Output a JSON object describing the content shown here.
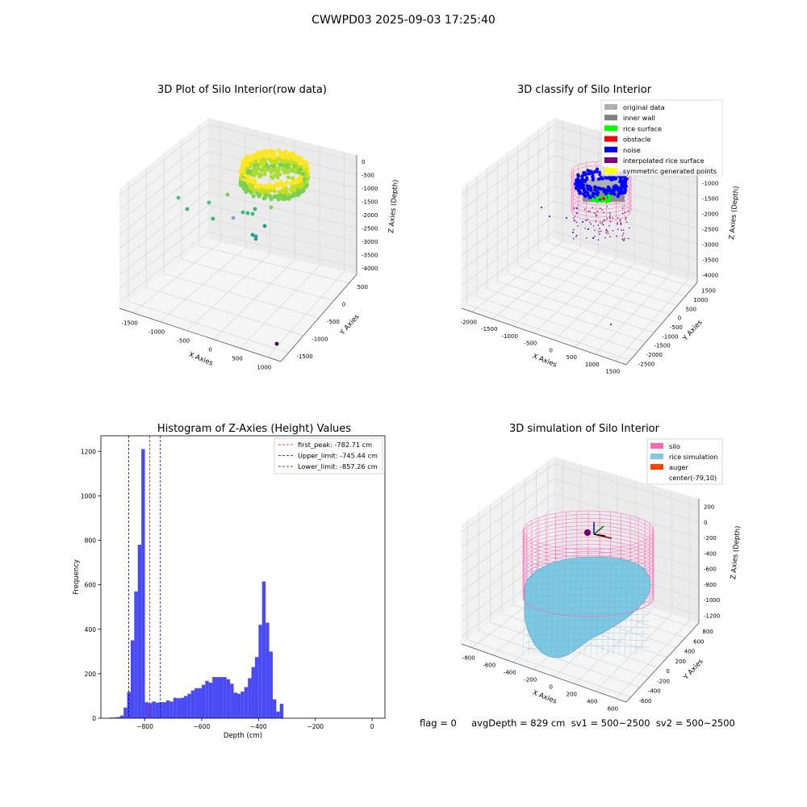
{
  "suptitle": "CWWPD03 2025-09-03 17:25:40",
  "status_line": "flag = 0     avgDepth = 829 cm  sv1 = 500~2500  sv2 = 500~2500",
  "colors": {
    "histogram_bar": "#4a4af5",
    "first_peak_line": "#ff0000",
    "limit_lines": "#0000aa",
    "pane": "#f2f2f2",
    "silo": "#ff69b4",
    "rice": "#7ec8e3",
    "auger": "#ff4500"
  },
  "chart_data": [
    {
      "type": "scatter3d",
      "title": "3D Plot of Silo Interior(row data)",
      "xlabel": "X Axies",
      "ylabel": "Y Axies",
      "zlabel": "Z Axies (Depth)",
      "x_ticks": [
        "-1500",
        "-1000",
        "-500",
        "0",
        "500",
        "1000"
      ],
      "y_ticks": [
        "-1500",
        "-1000",
        "-500",
        "0",
        "500"
      ],
      "z_ticks": [
        "0",
        "-500",
        "-1000",
        "-1500",
        "-2000",
        "-2500",
        "-3000",
        "-3500",
        "-4000"
      ],
      "colormap": "viridis",
      "grid": true
    },
    {
      "type": "scatter3d",
      "title": "3D classify of Silo Interior",
      "xlabel": "X Axies",
      "ylabel": "Y Axies",
      "zlabel": "Z Axies (Depth)",
      "x_ticks": [
        "-2000",
        "-1500",
        "-1000",
        "-500",
        "0",
        "500",
        "1000",
        "1500"
      ],
      "y_ticks": [
        "-2500",
        "-2000",
        "-1500",
        "-1000",
        "-500",
        "0",
        "500",
        "1000",
        "1500"
      ],
      "z_ticks": [
        "-500",
        "-1000",
        "-1500",
        "-2000",
        "-2500",
        "-3000",
        "-3500",
        "-4000"
      ],
      "legend_position": "top-right",
      "legend": [
        {
          "label": "original data",
          "color": "#b0b0b0"
        },
        {
          "label": "inner wall",
          "color": "#808080"
        },
        {
          "label": "rice surface",
          "color": "#00ff00"
        },
        {
          "label": "obstacle",
          "color": "#ff0000"
        },
        {
          "label": "noise",
          "color": "#0000ff"
        },
        {
          "label": "interpolated rice surface",
          "color": "#800080"
        },
        {
          "label": "symmetric generated points",
          "color": "#ffff00"
        }
      ],
      "grid": true
    },
    {
      "type": "bar",
      "title": "Histogram of Z-Axies (Height) Values",
      "xlabel": "Depth (cm)",
      "ylabel": "Frequency",
      "xlim": [
        -955,
        45
      ],
      "ylim": [
        0,
        1270
      ],
      "x_ticks": [
        -800,
        -600,
        -400,
        -200,
        0
      ],
      "y_ticks": [
        0,
        200,
        400,
        600,
        800,
        1000,
        1200
      ],
      "bin_edges_start": -925,
      "bin_width": 12.5,
      "values": [
        3,
        3,
        5,
        12,
        48,
        118,
        350,
        570,
        780,
        1210,
        72,
        68,
        75,
        70,
        72,
        72,
        80,
        75,
        92,
        90,
        92,
        100,
        110,
        125,
        135,
        135,
        150,
        168,
        160,
        185,
        185,
        185,
        185,
        175,
        155,
        115,
        110,
        120,
        140,
        180,
        230,
        275,
        420,
        615,
        430,
        300,
        85,
        30,
        65
      ],
      "reference_lines": [
        {
          "label": "first_peak: -782.71 cm",
          "x": -782.71,
          "color": "#ff0000",
          "style": "dashed"
        },
        {
          "label": "Upper_limit: -745.44 cm",
          "x": -745.44,
          "color": "#0000aa",
          "style": "dashed"
        },
        {
          "label": "Lower_limit: -857.26 cm",
          "x": -857.26,
          "color": "#0000aa",
          "style": "dashed"
        }
      ],
      "legend_position": "top-right",
      "grid": false
    },
    {
      "type": "surface3d",
      "title": "3D simulation of Silo Interior",
      "xlabel": "X Axies",
      "ylabel": "Y Axies",
      "zlabel": "Z Axies (Depth)",
      "x_ticks": [
        "-800",
        "-600",
        "-400",
        "-200",
        "0",
        "200",
        "400",
        "600"
      ],
      "y_ticks": [
        "-600",
        "-400",
        "-200",
        "0",
        "200",
        "400",
        "600",
        "800"
      ],
      "z_ticks": [
        "200",
        "0",
        "-200",
        "-400",
        "-600",
        "-800",
        "-1000",
        "-1200"
      ],
      "legend_position": "top-right",
      "legend": [
        {
          "label": "silo",
          "color": "#ff69b4"
        },
        {
          "label": "rice simulation",
          "color": "#7ec8e3"
        },
        {
          "label": "auger",
          "color": "#ff4500"
        },
        {
          "label": "center(-79,10)",
          "color": ""
        }
      ],
      "grid": true
    }
  ]
}
